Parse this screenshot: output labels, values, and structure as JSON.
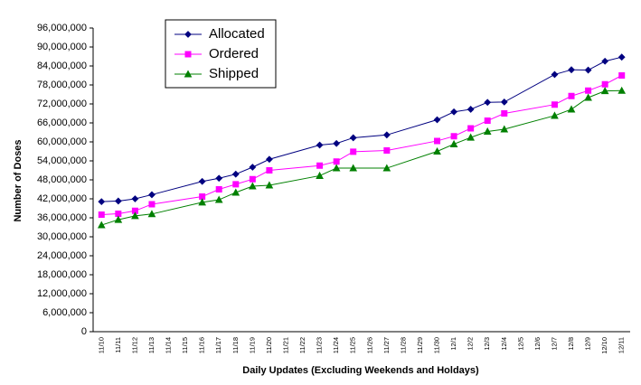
{
  "chart_data": {
    "type": "line",
    "x_label": "Daily Updates (Excluding Weekends and Holdays)",
    "y_label": "Number of Doses",
    "categories": [
      "11/10",
      "11/11",
      "11/12",
      "11/13",
      "11/14",
      "11/15",
      "11/16",
      "11/17",
      "11/18",
      "11/19",
      "11/20",
      "11/21",
      "11/22",
      "11/23",
      "11/24",
      "11/25",
      "11/26",
      "11/27",
      "11/28",
      "11/29",
      "11/30",
      "12/1",
      "12/2",
      "12/3",
      "12/4",
      "12/5",
      "12/6",
      "12/7",
      "12/8",
      "12/9",
      "12/10",
      "12/11"
    ],
    "x": [
      "11/10",
      "11/11",
      "11/12",
      "11/13",
      "11/16",
      "11/17",
      "11/18",
      "11/19",
      "11/20",
      "11/23",
      "11/24",
      "11/25",
      "11/27",
      "11/30",
      "12/1",
      "12/2",
      "12/3",
      "12/4",
      "12/7",
      "12/8",
      "12/9",
      "12/10",
      "12/11"
    ],
    "series": [
      {
        "name": "Allocated",
        "color": "#000080",
        "marker": "diamond",
        "values": [
          41100000,
          41300000,
          42000000,
          43300000,
          47500000,
          48500000,
          49800000,
          52000000,
          54500000,
          59000000,
          59500000,
          61300000,
          62200000,
          67000000,
          69500000,
          70300000,
          72500000,
          72600000,
          81300000,
          82800000,
          82700000,
          85500000,
          86800000
        ]
      },
      {
        "name": "Ordered",
        "color": "#ff00ff",
        "marker": "square",
        "values": [
          37000000,
          37300000,
          38200000,
          40300000,
          42700000,
          45000000,
          46600000,
          48200000,
          51000000,
          52500000,
          53800000,
          56900000,
          57300000,
          60300000,
          61800000,
          64300000,
          66700000,
          69000000,
          71800000,
          74500000,
          76200000,
          78200000,
          81000000
        ]
      },
      {
        "name": "Shipped",
        "color": "#008000",
        "marker": "triangle",
        "values": [
          33700000,
          35400000,
          36600000,
          37200000,
          40900000,
          41700000,
          44000000,
          46000000,
          46300000,
          49300000,
          51700000,
          51700000,
          51700000,
          57000000,
          59300000,
          61400000,
          63300000,
          64000000,
          68300000,
          70300000,
          74000000,
          76100000,
          76200000
        ]
      }
    ],
    "ylim": [
      0,
      96000000
    ],
    "yticks": [
      0,
      {
        "value": 6000000,
        "label": "6,000,000"
      },
      {
        "value": 12000000,
        "label": "12,000,000"
      },
      {
        "value": 18000000,
        "label": "18,000,000"
      },
      {
        "value": 24000000,
        "label": "24,000,000"
      },
      {
        "value": 30000000,
        "label": "30,000,000"
      },
      {
        "value": 36000000,
        "label": "36,000,000"
      },
      {
        "value": 42000000,
        "label": "42,000,000"
      },
      {
        "value": 48000000,
        "label": "48,000,000"
      },
      {
        "value": 54000000,
        "label": "54,000,000"
      },
      {
        "value": 60000000,
        "label": "60,000,000"
      },
      {
        "value": 66000000,
        "label": "66,000,000"
      },
      {
        "value": 72000000,
        "label": "72,000,000"
      },
      {
        "value": 78000000,
        "label": "78,000,000"
      },
      {
        "value": 84000000,
        "label": "84,000,000"
      },
      {
        "value": 90000000,
        "label": "90,000,000"
      },
      {
        "value": 96000000,
        "label": "96,000,000"
      }
    ],
    "grid": false,
    "legend": "upper-left"
  }
}
